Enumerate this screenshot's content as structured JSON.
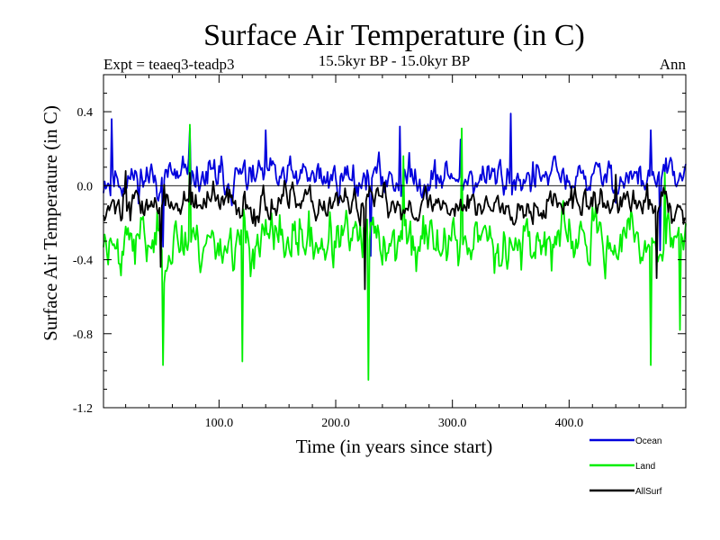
{
  "chart_data": {
    "type": "line",
    "title": "Surface Air Temperature (in C)",
    "subtitle": "15.5kyr BP - 15.0kyr BP",
    "top_left_label": "Expt = teaeq3-teadp3",
    "top_right_label": "Ann",
    "xlabel": "Time (in years since start)",
    "ylabel": "Surface Air Temperature (in C)",
    "xlim": [
      1,
      500
    ],
    "ylim": [
      -1.2,
      0.6
    ],
    "x_ticks": [
      100,
      200,
      300,
      400
    ],
    "x_tick_labels": [
      "100.0",
      "200.0",
      "300.0",
      "400.0"
    ],
    "y_ticks": [
      -1.2,
      -0.8,
      -0.4,
      0.0,
      0.4
    ],
    "y_tick_labels": [
      "-1.2",
      "-0.8",
      "-0.4",
      "0.0",
      "0.4"
    ],
    "zero_line": true,
    "legend_position": "bottom-right",
    "series": [
      {
        "name": "Ocean",
        "color": "#0000dd",
        "mean": 0.04,
        "amplitude": 0.14,
        "seed": 11,
        "peaks": [
          [
            8,
            0.36
          ],
          [
            75,
            0.31
          ],
          [
            140,
            0.3
          ],
          [
            255,
            0.32
          ],
          [
            307,
            0.25
          ],
          [
            350,
            0.39
          ],
          [
            470,
            0.3
          ]
        ],
        "troughs": [
          [
            52,
            -0.33
          ],
          [
            230,
            -0.38
          ],
          [
            478,
            -0.35
          ]
        ]
      },
      {
        "name": "Land",
        "color": "#00ee00",
        "mean": -0.3,
        "amplitude": 0.2,
        "seed": 23,
        "peaks": [
          [
            75,
            0.33
          ],
          [
            258,
            0.16
          ],
          [
            308,
            0.31
          ],
          [
            482,
            0.07
          ]
        ],
        "troughs": [
          [
            52,
            -0.97
          ],
          [
            120,
            -0.95
          ],
          [
            228,
            -1.05
          ],
          [
            470,
            -0.97
          ],
          [
            495,
            -0.78
          ]
        ]
      },
      {
        "name": "AllSurf",
        "color": "#000000",
        "mean": -0.1,
        "amplitude": 0.12,
        "seed": 37,
        "peaks": [
          [
            20,
            0.08
          ],
          [
            75,
            0.07
          ],
          [
            440,
            0.06
          ]
        ],
        "troughs": [
          [
            50,
            -0.44
          ],
          [
            225,
            -0.56
          ],
          [
            475,
            -0.5
          ]
        ]
      }
    ]
  }
}
